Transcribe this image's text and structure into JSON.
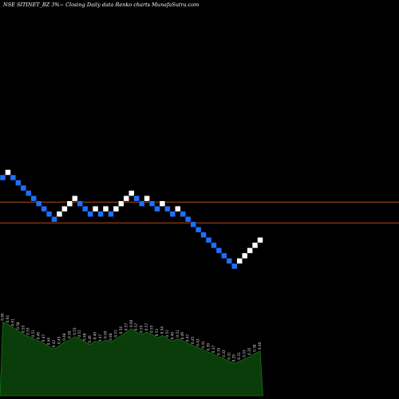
{
  "chart_data": {
    "type": "renko",
    "title": "NSE SITINET_BZ 3%~  Closing Daily data  Renko  charts MunafaSutra.com",
    "colors": {
      "background": "#000000",
      "brick_up": "#ffffff",
      "brick_down": "#1e6fff",
      "reference_line": "#b5481c",
      "volume_fill": "#0a3d0a",
      "volume_line": "#1e8a1e"
    },
    "bricks": [
      {
        "dir": "down",
        "level": 1
      },
      {
        "dir": "up",
        "level": 0
      },
      {
        "dir": "down",
        "level": 1
      },
      {
        "dir": "down",
        "level": 2
      },
      {
        "dir": "down",
        "level": 3
      },
      {
        "dir": "down",
        "level": 4
      },
      {
        "dir": "down",
        "level": 5
      },
      {
        "dir": "down",
        "level": 6
      },
      {
        "dir": "down",
        "level": 7
      },
      {
        "dir": "down",
        "level": 8
      },
      {
        "dir": "down",
        "level": 9
      },
      {
        "dir": "up",
        "level": 8
      },
      {
        "dir": "up",
        "level": 7
      },
      {
        "dir": "up",
        "level": 6
      },
      {
        "dir": "up",
        "level": 5
      },
      {
        "dir": "down",
        "level": 6
      },
      {
        "dir": "down",
        "level": 7
      },
      {
        "dir": "down",
        "level": 8
      },
      {
        "dir": "up",
        "level": 7
      },
      {
        "dir": "down",
        "level": 8
      },
      {
        "dir": "up",
        "level": 7
      },
      {
        "dir": "down",
        "level": 8
      },
      {
        "dir": "up",
        "level": 7
      },
      {
        "dir": "up",
        "level": 6
      },
      {
        "dir": "up",
        "level": 5
      },
      {
        "dir": "up",
        "level": 4
      },
      {
        "dir": "down",
        "level": 5
      },
      {
        "dir": "down",
        "level": 6
      },
      {
        "dir": "up",
        "level": 5
      },
      {
        "dir": "down",
        "level": 6
      },
      {
        "dir": "down",
        "level": 7
      },
      {
        "dir": "up",
        "level": 6
      },
      {
        "dir": "down",
        "level": 7
      },
      {
        "dir": "down",
        "level": 8
      },
      {
        "dir": "up",
        "level": 7
      },
      {
        "dir": "down",
        "level": 8
      },
      {
        "dir": "down",
        "level": 9
      },
      {
        "dir": "down",
        "level": 10
      },
      {
        "dir": "down",
        "level": 11
      },
      {
        "dir": "down",
        "level": 12
      },
      {
        "dir": "down",
        "level": 13
      },
      {
        "dir": "down",
        "level": 14
      },
      {
        "dir": "down",
        "level": 15
      },
      {
        "dir": "down",
        "level": 16
      },
      {
        "dir": "down",
        "level": 17
      },
      {
        "dir": "down",
        "level": 18
      },
      {
        "dir": "up",
        "level": 17
      },
      {
        "dir": "up",
        "level": 16
      },
      {
        "dir": "up",
        "level": 15
      },
      {
        "dir": "up",
        "level": 14
      },
      {
        "dir": "up",
        "level": 13
      }
    ],
    "reference_lines": [
      5.7,
      9.7
    ],
    "volume_labels": [
      "0.66",
      "0.64",
      "0.61",
      "0.58",
      "0.55",
      "0.53",
      "0.51",
      "0.49",
      "0.47",
      "0.44",
      "0.42",
      "0.45",
      "0.48",
      "0.50",
      "0.53",
      "0.51",
      "0.48",
      "0.46",
      "0.49",
      "0.47",
      "0.50",
      "0.48",
      "0.51",
      "0.54",
      "0.57",
      "0.60",
      "0.57",
      "0.55",
      "0.57",
      "0.55",
      "0.52",
      "0.54",
      "0.51",
      "0.49",
      "0.51",
      "0.49",
      "0.47",
      "0.45",
      "0.43",
      "0.41",
      "0.39",
      "0.37",
      "0.35",
      "0.33",
      "0.31",
      "0.29",
      "0.31",
      "0.33",
      "0.35",
      "0.38",
      "0.40"
    ],
    "volume_values": [
      0.66,
      0.64,
      0.61,
      0.58,
      0.55,
      0.53,
      0.51,
      0.49,
      0.47,
      0.44,
      0.42,
      0.45,
      0.48,
      0.5,
      0.53,
      0.51,
      0.48,
      0.46,
      0.49,
      0.47,
      0.5,
      0.48,
      0.51,
      0.54,
      0.57,
      0.6,
      0.57,
      0.55,
      0.57,
      0.55,
      0.52,
      0.54,
      0.51,
      0.49,
      0.51,
      0.49,
      0.47,
      0.45,
      0.43,
      0.41,
      0.39,
      0.37,
      0.35,
      0.33,
      0.31,
      0.29,
      0.31,
      0.33,
      0.35,
      0.38,
      0.4
    ]
  }
}
